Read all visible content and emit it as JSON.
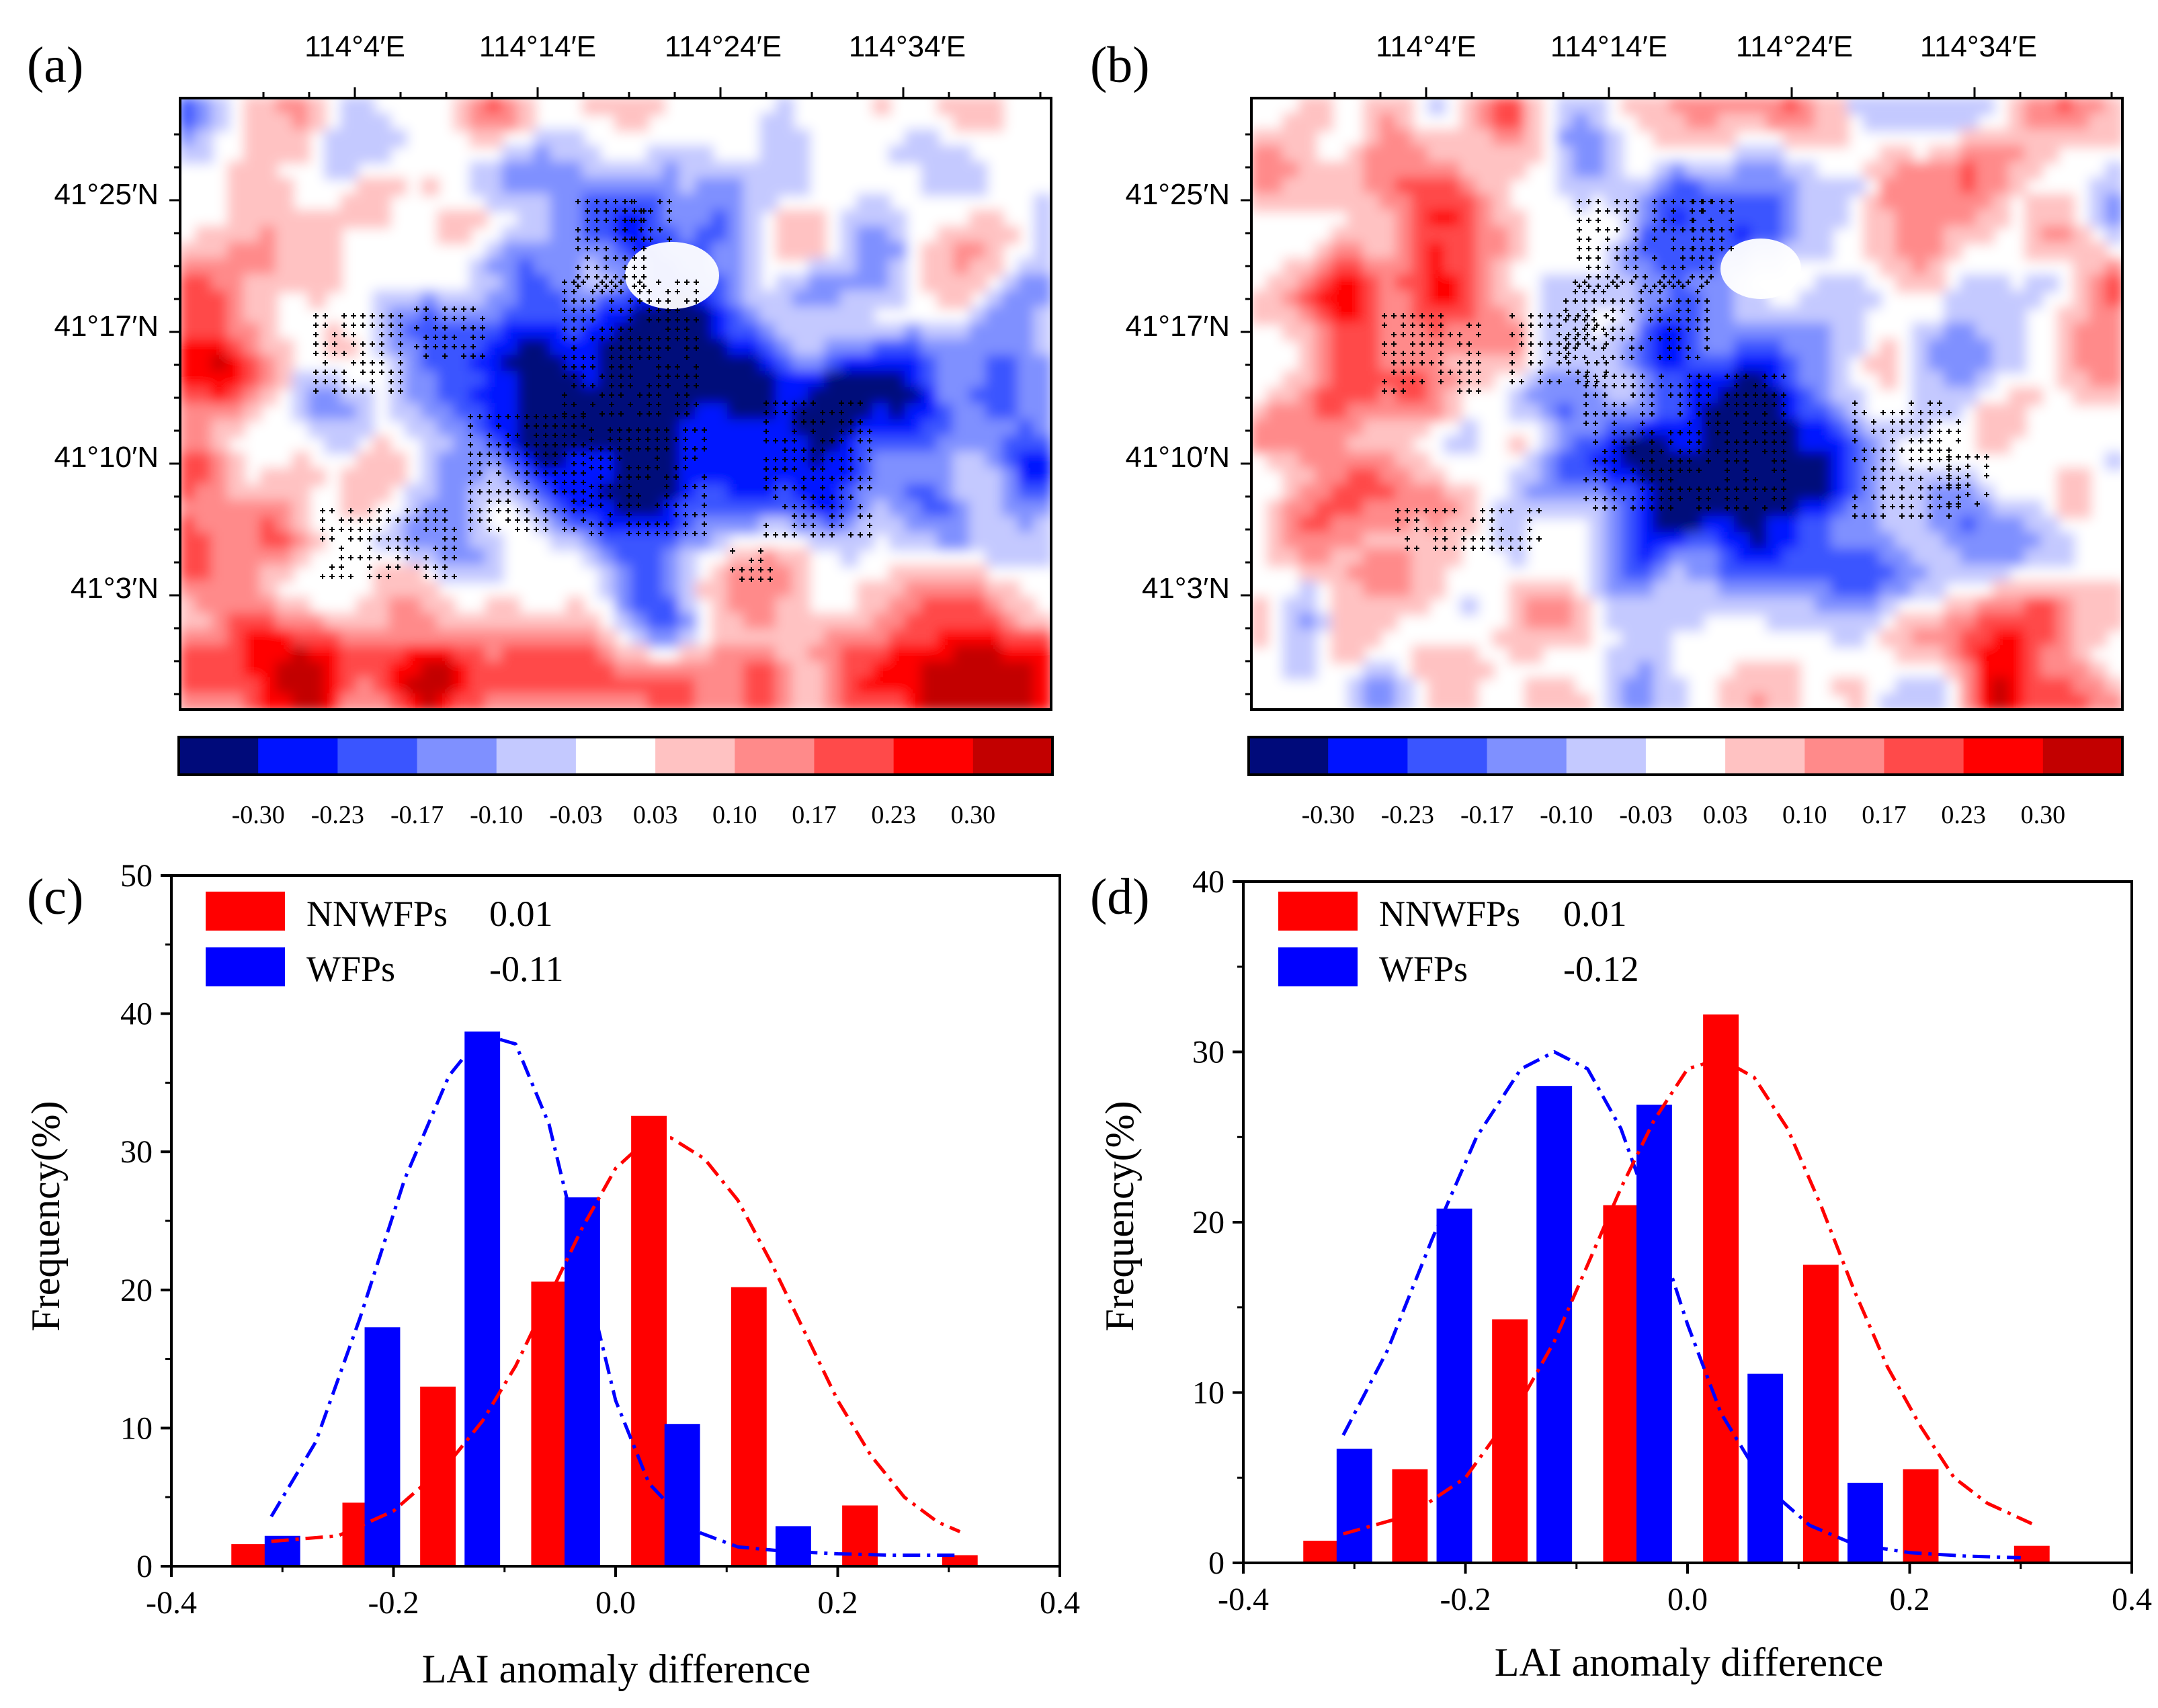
{
  "colors": {
    "nnwfp": "#ff0000",
    "wfp": "#0000ff",
    "scale": [
      "#000a7a",
      "#0013ff",
      "#3a55ff",
      "#7f90ff",
      "#c4c9ff",
      "#ffffff",
      "#ffc2c2",
      "#ff8a8a",
      "#ff4a4a",
      "#ff0000",
      "#c20000"
    ]
  },
  "maps": [
    {
      "id": "a",
      "panel_label": "(a)",
      "lon_ticks": [
        "114°4′E",
        "114°14′E",
        "114°24′E",
        "114°34′E"
      ],
      "lat_ticks": [
        "41°25′N",
        "41°17′N",
        "41°10′N",
        "41°3′N"
      ],
      "colorbar_labels": [
        "-0.30",
        "-0.23",
        "-0.17",
        "-0.10",
        "-0.03",
        "0.03",
        "0.10",
        "0.17",
        "0.23",
        "0.30"
      ]
    },
    {
      "id": "b",
      "panel_label": "(b)",
      "lon_ticks": [
        "114°4′E",
        "114°14′E",
        "114°24′E",
        "114°34′E"
      ],
      "lat_ticks": [
        "41°25′N",
        "41°17′N",
        "41°10′N",
        "41°3′N"
      ],
      "colorbar_labels": [
        "-0.30",
        "-0.23",
        "-0.17",
        "-0.10",
        "-0.03",
        "0.03",
        "0.10",
        "0.17",
        "0.23",
        "0.30"
      ]
    }
  ],
  "chart_data": [
    {
      "id": "c",
      "panel_label": "(c)",
      "type": "bar",
      "xlabel": "LAI anomaly difference",
      "ylabel": "Frequency(%)",
      "xlim": [
        -0.4,
        0.4
      ],
      "ylim": [
        0,
        50
      ],
      "xticks": [
        "-0.4",
        "-0.2",
        "0.0",
        "0.2",
        "0.4"
      ],
      "yticks": [
        "0",
        "10",
        "20",
        "30",
        "40",
        "50"
      ],
      "legend": [
        {
          "name": "NNWFPs",
          "value": "0.01"
        },
        {
          "name": "WFPs",
          "value": "-0.11"
        }
      ],
      "series": [
        {
          "name": "NNWFPs",
          "x": [
            -0.33,
            -0.23,
            -0.16,
            -0.06,
            0.03,
            0.12,
            0.22,
            0.31
          ],
          "values": [
            1.6,
            4.6,
            13.0,
            20.6,
            32.6,
            20.2,
            4.4,
            0.8
          ]
        },
        {
          "name": "WFPs",
          "x": [
            -0.3,
            -0.21,
            -0.12,
            -0.03,
            0.06,
            0.16
          ],
          "values": [
            2.2,
            17.3,
            38.7,
            26.7,
            10.3,
            2.9
          ]
        }
      ],
      "fits": [
        {
          "name": "WFPs",
          "x": [
            -0.31,
            -0.27,
            -0.23,
            -0.19,
            -0.15,
            -0.12,
            -0.09,
            -0.06,
            -0.03,
            0.0,
            0.03,
            0.07,
            0.11,
            0.15,
            0.2,
            0.25,
            0.31
          ],
          "y": [
            3.6,
            9.0,
            18.0,
            28.0,
            35.5,
            38.5,
            37.8,
            32.0,
            22.0,
            12.0,
            6.0,
            2.6,
            1.4,
            1.1,
            0.9,
            0.8,
            0.8
          ]
        },
        {
          "name": "NNWFPs",
          "x": [
            -0.31,
            -0.25,
            -0.2,
            -0.15,
            -0.12,
            -0.09,
            -0.06,
            -0.03,
            0.0,
            0.03,
            0.05,
            0.08,
            0.11,
            0.14,
            0.17,
            0.2,
            0.23,
            0.26,
            0.29,
            0.31
          ],
          "y": [
            1.8,
            2.2,
            4.0,
            7.5,
            10.5,
            14.5,
            19.5,
            24.5,
            28.8,
            31.0,
            31.0,
            29.5,
            26.5,
            22.0,
            17.0,
            12.0,
            8.0,
            5.0,
            3.2,
            2.5
          ]
        }
      ]
    },
    {
      "id": "d",
      "panel_label": "(d)",
      "type": "bar",
      "xlabel": "LAI anomaly difference",
      "ylabel": "Frequency(%)",
      "xlim": [
        -0.4,
        0.4
      ],
      "ylim": [
        0,
        40
      ],
      "xticks": [
        "-0.4",
        "-0.2",
        "0.0",
        "0.2",
        "0.4"
      ],
      "yticks": [
        "0",
        "10",
        "20",
        "30",
        "40"
      ],
      "legend": [
        {
          "name": "NNWFPs",
          "value": "0.01"
        },
        {
          "name": "WFPs",
          "value": "-0.12"
        }
      ],
      "series": [
        {
          "name": "NNWFPs",
          "x": [
            -0.33,
            -0.25,
            -0.16,
            -0.06,
            0.03,
            0.12,
            0.21,
            0.31
          ],
          "values": [
            1.3,
            5.5,
            14.3,
            21.0,
            32.2,
            17.5,
            5.5,
            1.0
          ]
        },
        {
          "name": "WFPs",
          "x": [
            -0.3,
            -0.21,
            -0.12,
            -0.03,
            0.07,
            0.16
          ],
          "values": [
            6.7,
            20.8,
            28.0,
            26.9,
            11.1,
            4.7
          ]
        }
      ],
      "fits": [
        {
          "name": "WFPs",
          "x": [
            -0.31,
            -0.27,
            -0.23,
            -0.19,
            -0.15,
            -0.12,
            -0.09,
            -0.06,
            -0.03,
            0.0,
            0.03,
            0.07,
            0.11,
            0.15,
            0.2,
            0.25,
            0.3
          ],
          "y": [
            7.5,
            12.5,
            19.0,
            25.0,
            29.0,
            30.0,
            29.0,
            25.5,
            20.0,
            14.0,
            8.8,
            4.5,
            2.2,
            1.1,
            0.6,
            0.4,
            0.3
          ]
        },
        {
          "name": "NNWFPs",
          "x": [
            -0.31,
            -0.25,
            -0.2,
            -0.15,
            -0.12,
            -0.09,
            -0.06,
            -0.03,
            0.0,
            0.03,
            0.06,
            0.09,
            0.12,
            0.15,
            0.18,
            0.21,
            0.24,
            0.27,
            0.31
          ],
          "y": [
            1.7,
            2.8,
            5.0,
            9.5,
            13.0,
            17.5,
            22.0,
            26.0,
            29.0,
            29.6,
            28.5,
            25.5,
            21.0,
            16.0,
            11.5,
            8.0,
            5.0,
            3.5,
            2.3
          ]
        }
      ]
    }
  ]
}
